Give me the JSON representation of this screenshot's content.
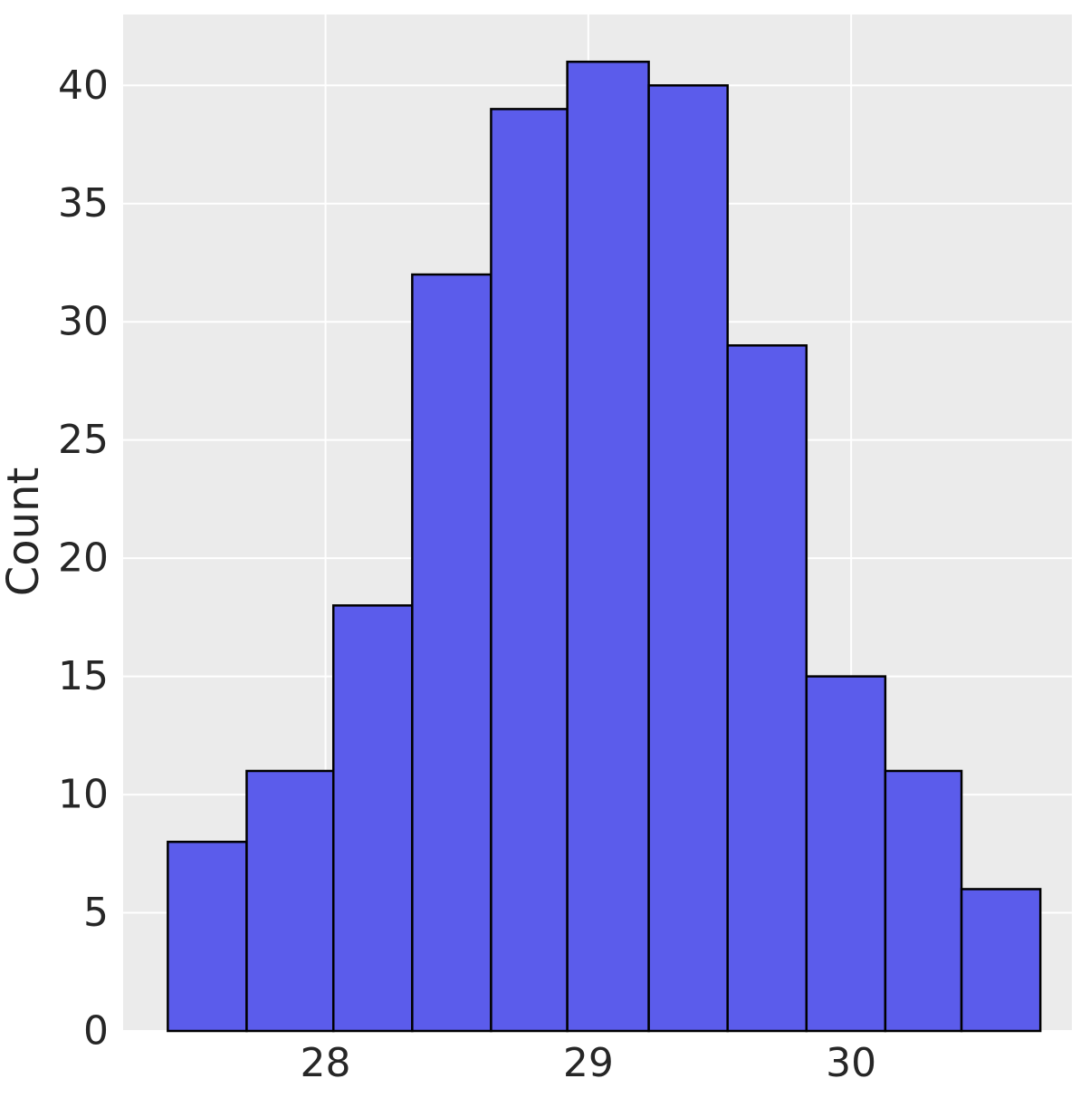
{
  "chart_data": {
    "type": "bar",
    "title": "",
    "xlabel": "",
    "ylabel": "Count",
    "x_ticks": [
      28,
      29,
      30
    ],
    "y_ticks": [
      0,
      5,
      10,
      15,
      20,
      25,
      30,
      35,
      40
    ],
    "xlim": [
      27.23,
      30.84
    ],
    "ylim": [
      0,
      43
    ],
    "grid": true,
    "bins": [
      {
        "x0": 27.4,
        "x1": 27.7,
        "count": 8
      },
      {
        "x0": 27.7,
        "x1": 28.03,
        "count": 11
      },
      {
        "x0": 28.03,
        "x1": 28.33,
        "count": 18
      },
      {
        "x0": 28.33,
        "x1": 28.63,
        "count": 32
      },
      {
        "x0": 28.63,
        "x1": 28.92,
        "count": 39
      },
      {
        "x0": 28.92,
        "x1": 29.23,
        "count": 41
      },
      {
        "x0": 29.23,
        "x1": 29.53,
        "count": 40
      },
      {
        "x0": 29.53,
        "x1": 29.83,
        "count": 29
      },
      {
        "x0": 29.83,
        "x1": 30.13,
        "count": 15
      },
      {
        "x0": 30.13,
        "x1": 30.42,
        "count": 11
      },
      {
        "x0": 30.42,
        "x1": 30.72,
        "count": 6
      }
    ],
    "colors": {
      "bar_fill": "#5b5ceb",
      "bar_edge": "#000000",
      "plot_bg": "#ebebeb",
      "grid": "#ffffff",
      "text": "#262626"
    }
  }
}
